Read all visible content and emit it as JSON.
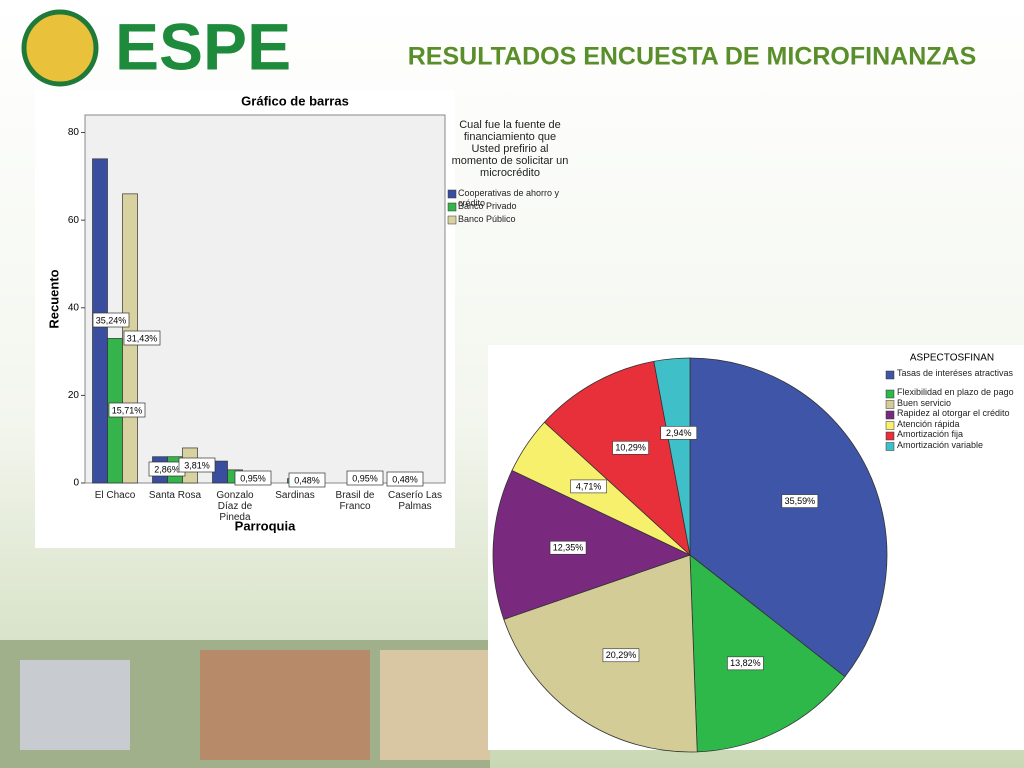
{
  "header": {
    "logo": "ESPE",
    "title": "RESULTADOS ENCUESTA DE MICROFINANZAS"
  },
  "chart_data": [
    {
      "type": "bar",
      "title": "Gráfico de barras",
      "x_label": "Parroquia",
      "y_label": "Recuento",
      "legend_title": "Cual fue la fuente de financiamiento que Usted prefirio al momento de solicitar un microcrédito",
      "categories": [
        "El Chaco",
        "Santa Rosa",
        "Gonzalo Díaz de Pineda",
        "Sardinas",
        "Brasil de Franco",
        "Caserío Las Palmas"
      ],
      "series": [
        {
          "name": "Cooperativas de ahorro y crédito",
          "color": "#3a4ea0",
          "values": [
            74,
            6,
            5,
            0,
            0,
            0
          ]
        },
        {
          "name": "Banco Privado",
          "color": "#34b44a",
          "values": [
            33,
            6,
            3,
            1,
            2,
            1
          ]
        },
        {
          "name": "Banco Público",
          "color": "#d8d2a0",
          "values": [
            66,
            8,
            0,
            0,
            0,
            0
          ]
        }
      ],
      "annotations": [
        "35,24%",
        "31,43%",
        "15,71%",
        "2,86%",
        "3,81%",
        "0,95%",
        "0,48%",
        "0,95%",
        "0,48%"
      ],
      "ylim": [
        0,
        84
      ],
      "yticks": [
        0,
        20,
        40,
        60,
        80
      ],
      "legend": "right"
    },
    {
      "type": "pie",
      "legend_title": "ASPECTOSFINAN",
      "categories": [
        "Tasas de interéses atractivas",
        "Flexibilidad en plazo de pago",
        "Buen servicio",
        "Rapidez al otorgar el crédito",
        "Atención rápida",
        "Amortización fija",
        "Amortización variable"
      ],
      "values": [
        35.59,
        13.82,
        20.29,
        12.35,
        4.71,
        10.29,
        2.94
      ],
      "value_labels": [
        "35,59%",
        "13,82%",
        "20,29%",
        "12,35%",
        "4,71%",
        "10,29%",
        "2,94%"
      ],
      "colors": [
        "#3f56a8",
        "#2fb84a",
        "#d4cc96",
        "#7a2a7e",
        "#f7f06c",
        "#e8303a",
        "#3fc0c8"
      ],
      "legend": "right"
    }
  ]
}
